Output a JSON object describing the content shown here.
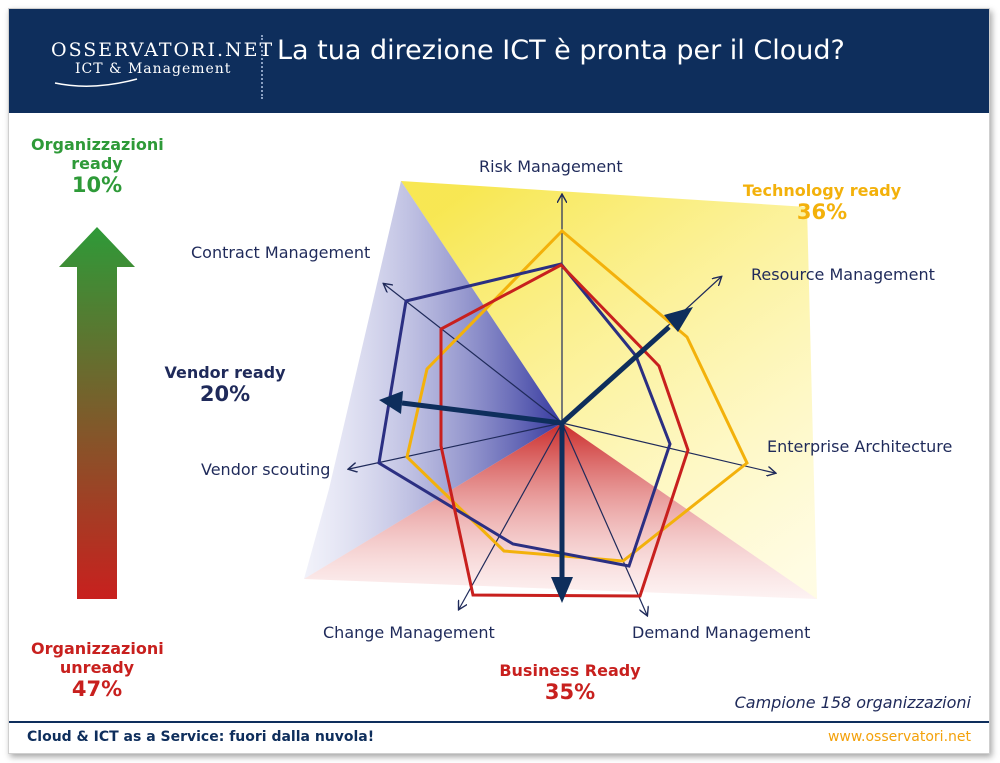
{
  "header": {
    "logo_name": "OSSERVATORI.NET",
    "logo_sub": "ICT & Management",
    "title": "La tua direzione ICT è pronta per il Cloud?"
  },
  "left_scale": {
    "top_label_1": "Organizzazioni",
    "top_label_2": "ready",
    "top_pct": "10%",
    "bottom_label_1": "Organizzazioni",
    "bottom_label_2": "unready",
    "bottom_pct": "47%"
  },
  "axes": {
    "risk": "Risk Management",
    "resource": "Resource Management",
    "enterprise": "Enterprise Architecture",
    "demand": "Demand Management",
    "change": "Change Management",
    "vendor_scouting": "Vendor scouting",
    "contract": "Contract Management"
  },
  "segments": {
    "technology_label": "Technology ready",
    "technology_pct": "36%",
    "vendor_label": "Vendor ready",
    "vendor_pct": "20%",
    "business_label": "Business Ready",
    "business_pct": "35%"
  },
  "sample": "Campione 158 organizzazioni",
  "footer": {
    "left": "Cloud & ICT as a Service: fuori dalla nuvola!",
    "right": "www.osservatori.net"
  },
  "colors": {
    "header_bg": "#0e2e5c",
    "ready_green": "#2e9a38",
    "unready_red": "#c8201e",
    "vendor_navy": "#2b2f82",
    "technology_yellow": "#f3b10b",
    "business_red": "#c8201e"
  }
}
